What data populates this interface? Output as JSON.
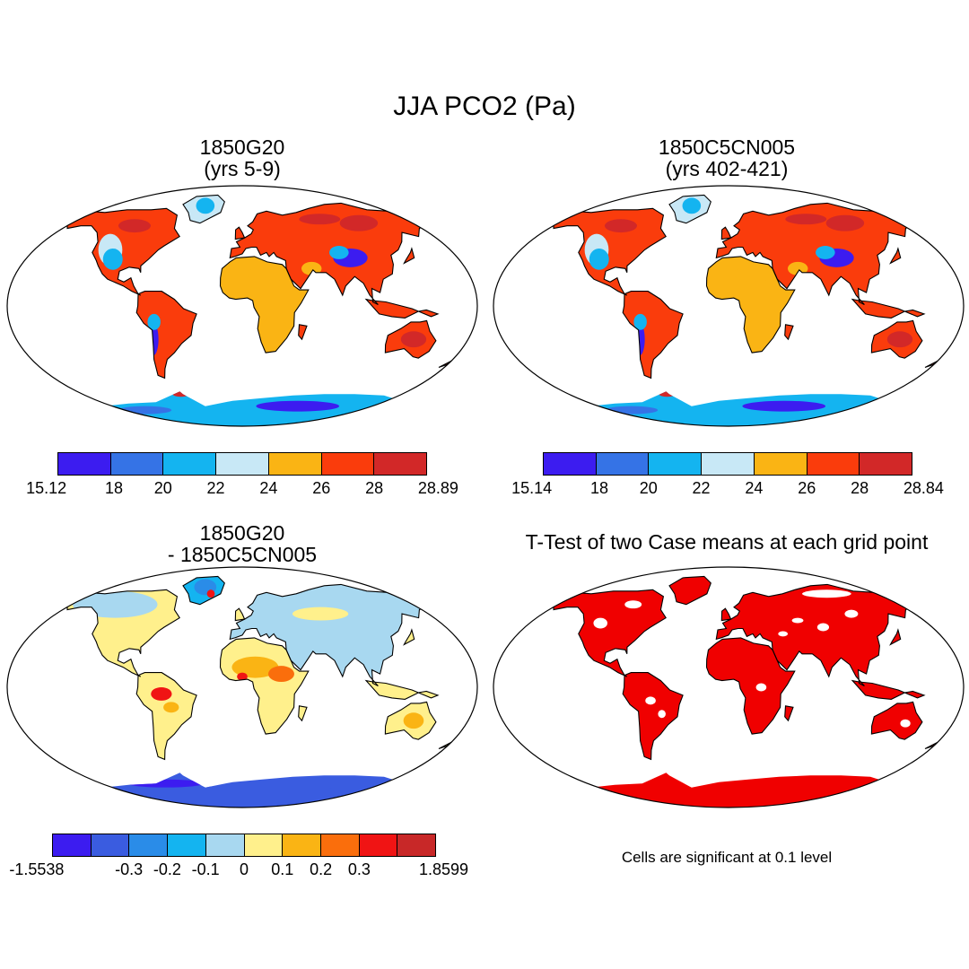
{
  "figure": {
    "title": "JJA PCO2 (Pa)"
  },
  "panels": [
    {
      "id": "case1",
      "title_line1": "1850G20",
      "title_line2": "(yrs 5-9)",
      "colorbar": {
        "colors": [
          "#3c1cf0",
          "#3573e6",
          "#14b4f0",
          "#c8e8f6",
          "#fab414",
          "#fa3c0c",
          "#d22828"
        ],
        "labels": [
          "15.12",
          "18",
          "20",
          "22",
          "24",
          "26",
          "28",
          "28.89"
        ]
      }
    },
    {
      "id": "case2",
      "title_line1": "1850C5CN005",
      "title_line2": "(yrs 402-421)",
      "colorbar": {
        "colors": [
          "#3c1cf0",
          "#3573e6",
          "#14b4f0",
          "#c8e8f6",
          "#fab414",
          "#fa3c0c",
          "#d22828"
        ],
        "labels": [
          "15.14",
          "18",
          "20",
          "22",
          "24",
          "26",
          "28",
          "28.84"
        ]
      }
    },
    {
      "id": "difference",
      "title_line1": "1850G20",
      "title_line2": "- 1850C5CN005",
      "colorbar": {
        "colors": [
          "#3c1cf0",
          "#3a5ce0",
          "#2a8ce8",
          "#14b4f0",
          "#a8d8f0",
          "#fff08c",
          "#fab414",
          "#fa6e0c",
          "#f01414",
          "#c82828"
        ],
        "labels": [
          "-1.5538",
          "-0.3",
          "-0.2",
          "-0.1",
          "0",
          "0.1",
          "0.2",
          "0.3",
          "1.8599"
        ]
      }
    },
    {
      "id": "ttest",
      "title_line1": "T-Test of two Case means at each grid point",
      "note": "Cells are significant at 0.1 level",
      "color": "#f00000"
    }
  ]
}
